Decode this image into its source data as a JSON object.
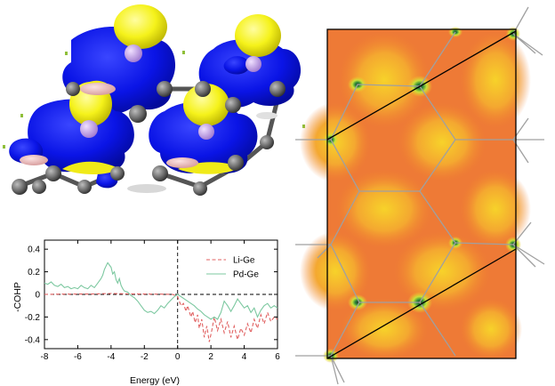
{
  "colors": {
    "isosurface_blue": "#0a14e6",
    "isosurface_yellow": "#f5f21a",
    "atom_grey": "#5a5a5a",
    "atom_pink": "#e6b4b4",
    "atom_violet": "#c8a8e6",
    "elf_background": "#f07830",
    "elf_high": "#f5c828",
    "li_ge_line": "#e06060",
    "pd_ge_line": "#7cc8a0"
  },
  "chart_data": {
    "type": "line",
    "title": "",
    "xlabel": "Energy (eV)",
    "ylabel": "-COHP",
    "xlim": [
      -8,
      6
    ],
    "ylim": [
      -0.48,
      0.48
    ],
    "xticks": [
      -8,
      -6,
      -4,
      -2,
      0,
      2,
      4,
      6
    ],
    "yticks": [
      0.4,
      0.2,
      0,
      -0.2,
      -0.4
    ],
    "grid": false,
    "legend_position": "top-right",
    "series": [
      {
        "name": "Li-Ge",
        "style": "dashed",
        "color": "#e06060",
        "points": [
          [
            -8,
            0.0
          ],
          [
            -7,
            0.002
          ],
          [
            -6,
            0.003
          ],
          [
            -5,
            0.004
          ],
          [
            -4.5,
            0.006
          ],
          [
            -4,
            0.008
          ],
          [
            -3,
            0.005
          ],
          [
            -2,
            0.003
          ],
          [
            -1,
            0.002
          ],
          [
            -0.3,
            0.0
          ],
          [
            0,
            -0.02
          ],
          [
            0.1,
            -0.06
          ],
          [
            0.2,
            -0.1
          ],
          [
            0.35,
            -0.08
          ],
          [
            0.5,
            -0.15
          ],
          [
            0.6,
            -0.1
          ],
          [
            0.8,
            -0.2
          ],
          [
            0.9,
            -0.15
          ],
          [
            1.05,
            -0.25
          ],
          [
            1.2,
            -0.18
          ],
          [
            1.3,
            -0.3
          ],
          [
            1.45,
            -0.22
          ],
          [
            1.6,
            -0.38
          ],
          [
            1.75,
            -0.28
          ],
          [
            1.9,
            -0.42
          ],
          [
            2.05,
            -0.32
          ],
          [
            2.2,
            -0.2
          ],
          [
            2.4,
            -0.32
          ],
          [
            2.6,
            -0.22
          ],
          [
            2.8,
            -0.34
          ],
          [
            3.0,
            -0.24
          ],
          [
            3.2,
            -0.38
          ],
          [
            3.4,
            -0.28
          ],
          [
            3.6,
            -0.4
          ],
          [
            3.8,
            -0.3
          ],
          [
            4.0,
            -0.36
          ],
          [
            4.2,
            -0.26
          ],
          [
            4.4,
            -0.34
          ],
          [
            4.6,
            -0.22
          ],
          [
            4.8,
            -0.3
          ],
          [
            5.0,
            -0.18
          ],
          [
            5.2,
            -0.26
          ],
          [
            5.4,
            -0.16
          ],
          [
            5.6,
            -0.24
          ],
          [
            5.8,
            -0.2
          ],
          [
            6.0,
            -0.22
          ]
        ]
      },
      {
        "name": "Pd-Ge",
        "style": "solid",
        "color": "#7cc8a0",
        "points": [
          [
            -8,
            0.1
          ],
          [
            -7.8,
            0.09
          ],
          [
            -7.6,
            0.11
          ],
          [
            -7.4,
            0.08
          ],
          [
            -7.2,
            0.07
          ],
          [
            -7.0,
            0.09
          ],
          [
            -6.8,
            0.06
          ],
          [
            -6.6,
            0.07
          ],
          [
            -6.4,
            0.05
          ],
          [
            -6.2,
            0.06
          ],
          [
            -6.0,
            0.05
          ],
          [
            -5.8,
            0.08
          ],
          [
            -5.6,
            0.06
          ],
          [
            -5.4,
            0.05
          ],
          [
            -5.2,
            0.08
          ],
          [
            -5.0,
            0.06
          ],
          [
            -4.8,
            0.1
          ],
          [
            -4.6,
            0.14
          ],
          [
            -4.5,
            0.17
          ],
          [
            -4.4,
            0.22
          ],
          [
            -4.3,
            0.25
          ],
          [
            -4.2,
            0.28
          ],
          [
            -4.1,
            0.26
          ],
          [
            -4.0,
            0.24
          ],
          [
            -3.9,
            0.18
          ],
          [
            -3.8,
            0.2
          ],
          [
            -3.7,
            0.13
          ],
          [
            -3.6,
            0.1
          ],
          [
            -3.5,
            0.14
          ],
          [
            -3.4,
            0.08
          ],
          [
            -3.3,
            0.05
          ],
          [
            -3.2,
            0.03
          ],
          [
            -3.0,
            0.02
          ],
          [
            -2.8,
            -0.01
          ],
          [
            -2.6,
            -0.03
          ],
          [
            -2.4,
            -0.06
          ],
          [
            -2.2,
            -0.1
          ],
          [
            -2.0,
            -0.14
          ],
          [
            -1.8,
            -0.16
          ],
          [
            -1.6,
            -0.15
          ],
          [
            -1.4,
            -0.17
          ],
          [
            -1.2,
            -0.14
          ],
          [
            -1.0,
            -0.1
          ],
          [
            -0.8,
            -0.12
          ],
          [
            -0.6,
            -0.08
          ],
          [
            -0.4,
            -0.05
          ],
          [
            -0.2,
            -0.02
          ],
          [
            0,
            0.0
          ],
          [
            0.2,
            -0.02
          ],
          [
            0.4,
            -0.04
          ],
          [
            0.6,
            -0.06
          ],
          [
            0.8,
            -0.08
          ],
          [
            1.0,
            -0.1
          ],
          [
            1.2,
            -0.13
          ],
          [
            1.4,
            -0.15
          ],
          [
            1.6,
            -0.18
          ],
          [
            1.8,
            -0.2
          ],
          [
            2.0,
            -0.22
          ],
          [
            2.2,
            -0.2
          ],
          [
            2.4,
            -0.22
          ],
          [
            2.6,
            -0.16
          ],
          [
            2.8,
            -0.06
          ],
          [
            3.0,
            -0.1
          ],
          [
            3.2,
            -0.15
          ],
          [
            3.4,
            -0.1
          ],
          [
            3.6,
            -0.04
          ],
          [
            3.8,
            -0.08
          ],
          [
            4.0,
            -0.12
          ],
          [
            4.2,
            -0.1
          ],
          [
            4.4,
            -0.16
          ],
          [
            4.6,
            -0.12
          ],
          [
            4.8,
            -0.2
          ],
          [
            5.0,
            -0.14
          ],
          [
            5.2,
            -0.1
          ],
          [
            5.4,
            -0.08
          ],
          [
            5.6,
            -0.12
          ],
          [
            5.8,
            -0.1
          ],
          [
            6.0,
            -0.12
          ]
        ]
      }
    ]
  }
}
